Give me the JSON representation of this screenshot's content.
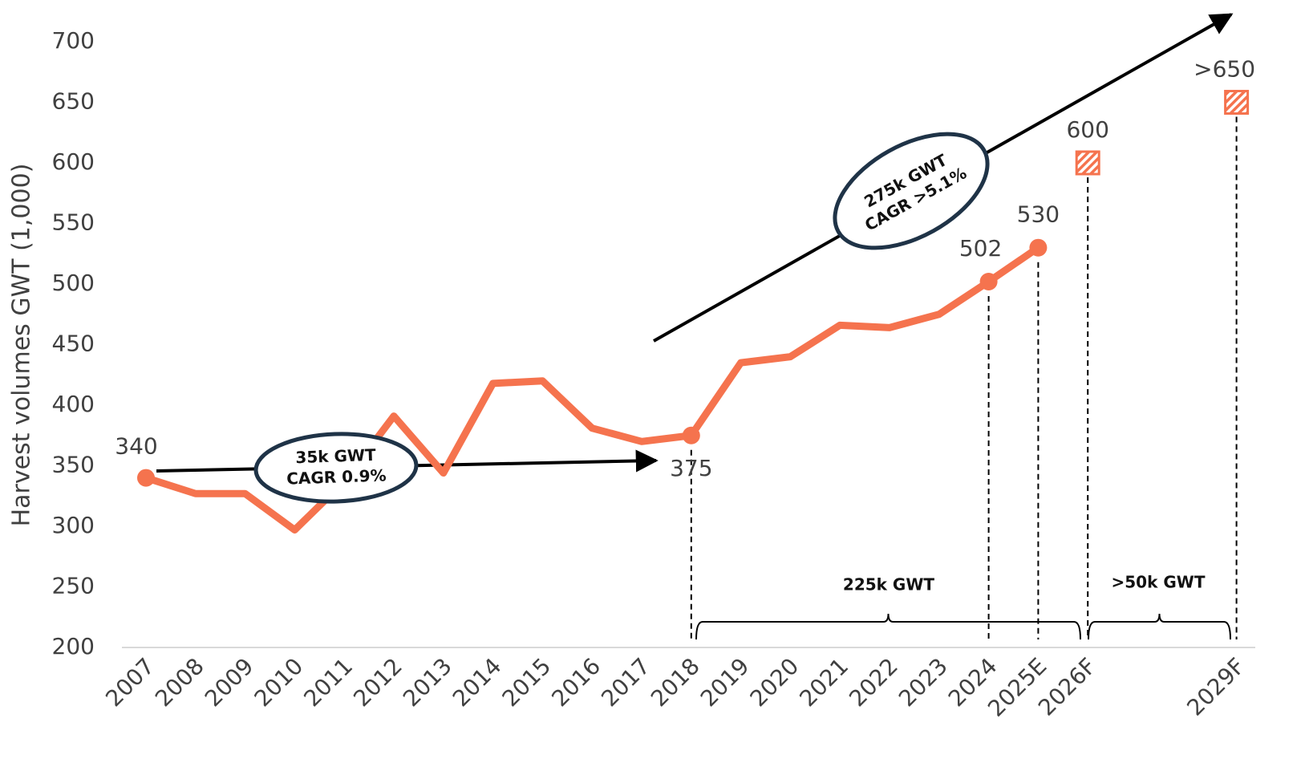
{
  "chart_data": {
    "type": "line",
    "y_label": "Harvest volumes GWT (1,000)",
    "categories": [
      "2007",
      "2008",
      "2009",
      "2010",
      "2011",
      "2012",
      "2013",
      "2014",
      "2015",
      "2016",
      "2017",
      "2018",
      "2019",
      "2020",
      "2021",
      "2022",
      "2023",
      "2024",
      "2025E",
      "2026F",
      null,
      null,
      "2029F"
    ],
    "series": [
      {
        "color": "#f5734e",
        "style": "line",
        "values": [
          340,
          327,
          327,
          297,
          337,
          391,
          344,
          418,
          420,
          381,
          370,
          375,
          435,
          440,
          466,
          464,
          475,
          502,
          530,
          null,
          null,
          null,
          null
        ],
        "value_labels": [
          "340",
          null,
          null,
          null,
          null,
          null,
          null,
          null,
          null,
          null,
          null,
          "375",
          null,
          null,
          null,
          null,
          null,
          "502",
          "530",
          null,
          null,
          null,
          null
        ]
      },
      {
        "color": "#f5734e",
        "style": "hatched-square",
        "values": [
          null,
          null,
          null,
          null,
          null,
          null,
          null,
          null,
          null,
          null,
          null,
          null,
          null,
          null,
          null,
          null,
          null,
          null,
          null,
          600,
          null,
          null,
          650
        ],
        "value_labels": [
          null,
          null,
          null,
          null,
          null,
          null,
          null,
          null,
          null,
          null,
          null,
          null,
          null,
          null,
          null,
          null,
          null,
          null,
          null,
          "600",
          null,
          null,
          ">650"
        ]
      }
    ],
    "ylim": [
      200,
      700
    ],
    "yticks": [
      200,
      250,
      300,
      350,
      400,
      450,
      500,
      550,
      600,
      650,
      700
    ],
    "grid": false,
    "annotations": [
      {
        "text": [
          "35k GWT",
          "CAGR 0.9%"
        ]
      },
      {
        "text": [
          "275k GWT",
          "CAGR >5.1%"
        ]
      },
      {
        "text": [
          "225k GWT"
        ]
      },
      {
        "text": [
          ">50k GWT"
        ]
      }
    ]
  }
}
